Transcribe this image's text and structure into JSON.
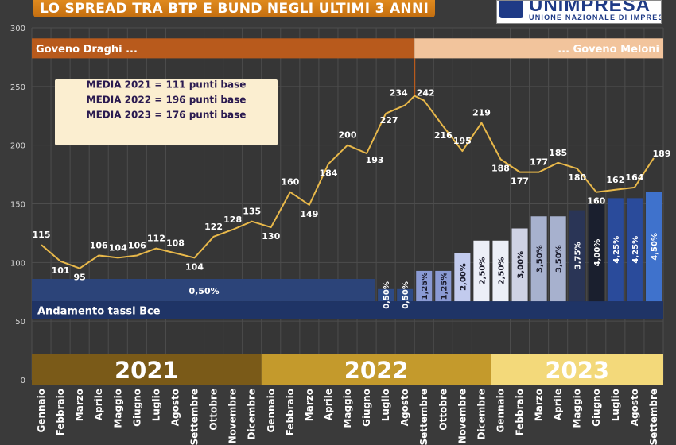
{
  "header": {
    "title": "LO SPREAD TRA BTP E BUND NEGLI ULTIMI 3 ANNI",
    "logo_name": "UNIMPRESA",
    "logo_subtitle": "UNIONE NAZIONALE DI IMPRESE"
  },
  "colors": {
    "background": "#3a3a3a",
    "spread_line": "#e8b84a",
    "draghi_band": "#b85a1c",
    "meloni_band": "#f2c49c",
    "bce_band": "#1f3466",
    "year_2021": "#7a5a18",
    "year_2022": "#c49a2c",
    "year_2023": "#f3d97a"
  },
  "chart_data": {
    "type": "line",
    "ylim": [
      0,
      300
    ],
    "yticks": [
      0,
      50,
      100,
      150,
      200,
      250,
      300
    ],
    "months": [
      "Gennaio",
      "Febbraio",
      "Marzo",
      "Aprile",
      "Maggio",
      "Giugno",
      "Luglio",
      "Agosto",
      "Settembre",
      "Ottobre",
      "Novembre",
      "Dicembre",
      "Gennaio",
      "Febbraio",
      "Marzo",
      "Aprile",
      "Maggio",
      "Giugno",
      "Luglio",
      "Agosto",
      "Settembre",
      "Ottobre",
      "Novembre",
      "Dicembre",
      "Gennaio",
      "Febbraio",
      "Marzo",
      "Aprile",
      "Maggio",
      "Giugno",
      "Luglio",
      "Agosto",
      "Settembre"
    ],
    "years": [
      "2021",
      "2022",
      "2023"
    ],
    "spread_points": [
      {
        "x": 0,
        "y": 115,
        "label": "115"
      },
      {
        "x": 1,
        "y": 101,
        "label": "101"
      },
      {
        "x": 2,
        "y": 95,
        "label": "95"
      },
      {
        "x": 3,
        "y": 106,
        "label": "106"
      },
      {
        "x": 4,
        "y": 104,
        "label": "104"
      },
      {
        "x": 5,
        "y": 106,
        "label": "106"
      },
      {
        "x": 6,
        "y": 112,
        "label": "112"
      },
      {
        "x": 7,
        "y": 108,
        "label": "108"
      },
      {
        "x": 8,
        "y": 104,
        "label": "104"
      },
      {
        "x": 9,
        "y": 122,
        "label": "122"
      },
      {
        "x": 10,
        "y": 128,
        "label": "128"
      },
      {
        "x": 11,
        "y": 135,
        "label": "135"
      },
      {
        "x": 12,
        "y": 130,
        "label": "130"
      },
      {
        "x": 13,
        "y": 160,
        "label": "160"
      },
      {
        "x": 14,
        "y": 149,
        "label": "149"
      },
      {
        "x": 15,
        "y": 184,
        "label": "184"
      },
      {
        "x": 16,
        "y": 200,
        "label": "200"
      },
      {
        "x": 17,
        "y": 193,
        "label": "193"
      },
      {
        "x": 18,
        "y": 227,
        "label": "227"
      },
      {
        "x": 19,
        "y": 234,
        "label": "234"
      },
      {
        "x": 19.5,
        "y": 242,
        "label": "242"
      },
      {
        "x": 20,
        "y": 238,
        "label": ""
      },
      {
        "x": 21,
        "y": 216,
        "label": "216"
      },
      {
        "x": 22,
        "y": 195,
        "label": "195"
      },
      {
        "x": 23,
        "y": 219,
        "label": "219"
      },
      {
        "x": 24,
        "y": 188,
        "label": "188"
      },
      {
        "x": 25,
        "y": 177,
        "label": "177"
      },
      {
        "x": 26,
        "y": 177,
        "label": "177"
      },
      {
        "x": 27,
        "y": 185,
        "label": "185"
      },
      {
        "x": 28,
        "y": 180,
        "label": "180"
      },
      {
        "x": 29,
        "y": 160,
        "label": "160"
      },
      {
        "x": 30,
        "y": 162,
        "label": "162"
      },
      {
        "x": 31,
        "y": 164,
        "label": "164"
      },
      {
        "x": 32,
        "y": 189,
        "label": "189"
      }
    ],
    "bce_rates": [
      {
        "month": 18,
        "value": 0.5,
        "label": "0,50%",
        "color": "#2d4a86"
      },
      {
        "month": 19,
        "value": 0.5,
        "label": "0,50%",
        "color": "#2d4a86"
      },
      {
        "month": 20,
        "value": 1.25,
        "label": "1,25%",
        "color": "#8a9ad4"
      },
      {
        "month": 21,
        "value": 1.25,
        "label": "1,25%",
        "color": "#8a9ad4"
      },
      {
        "month": 22,
        "value": 2.0,
        "label": "2,00%",
        "color": "#c2cbee"
      },
      {
        "month": 23,
        "value": 2.5,
        "label": "2,50%",
        "color": "#eceff7"
      },
      {
        "month": 24,
        "value": 2.5,
        "label": "2,50%",
        "color": "#eceff7"
      },
      {
        "month": 25,
        "value": 3.0,
        "label": "3,00%",
        "color": "#cfd2e4"
      },
      {
        "month": 26,
        "value": 3.5,
        "label": "3,50%",
        "color": "#a7b1ce"
      },
      {
        "month": 27,
        "value": 3.5,
        "label": "3,50%",
        "color": "#a7b1ce"
      },
      {
        "month": 28,
        "value": 3.75,
        "label": "3,75%",
        "color": "#2a3556"
      },
      {
        "month": 29,
        "value": 4.0,
        "label": "4,00%",
        "color": "#1a1f2e"
      },
      {
        "month": 30,
        "value": 4.25,
        "label": "4,25%",
        "color": "#2a4b9b"
      },
      {
        "month": 31,
        "value": 4.25,
        "label": "4,25%",
        "color": "#2a4b9b"
      },
      {
        "month": 32,
        "value": 4.5,
        "label": "4,50%",
        "color": "#3f72cc"
      }
    ],
    "bce_base": {
      "label": "0,50%"
    },
    "bce_title": "Andamento tassi Bce",
    "governments": [
      {
        "label": "Goveno Draghi ...",
        "from": 0,
        "to": 20
      },
      {
        "label": "... Goveno Meloni",
        "from": 20,
        "to": 33
      }
    ],
    "averages": [
      "MEDIA 2021 = 111 punti base",
      "MEDIA 2022 = 196 punti base",
      "MEDIA 2023 = 176 punti base"
    ],
    "grid": true
  }
}
